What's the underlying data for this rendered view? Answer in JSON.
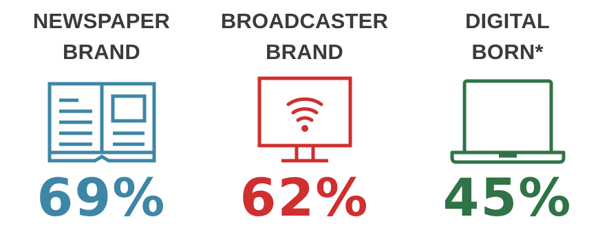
{
  "colors": {
    "heading": "#3b3b3b",
    "newspaper": "#3e86a6",
    "broadcaster": "#cf2f2f",
    "digital": "#2f7346"
  },
  "items": [
    {
      "heading_line1": "NEWSPAPER",
      "heading_line2": "BRAND",
      "icon": "open-book-icon",
      "value": "69%"
    },
    {
      "heading_line1": "BROADCASTER",
      "heading_line2": "BRAND",
      "icon": "tv-wifi-icon",
      "value": "62%"
    },
    {
      "heading_line1": "DIGITAL",
      "heading_line2": "BORN*",
      "icon": "laptop-icon",
      "value": "45%"
    }
  ]
}
